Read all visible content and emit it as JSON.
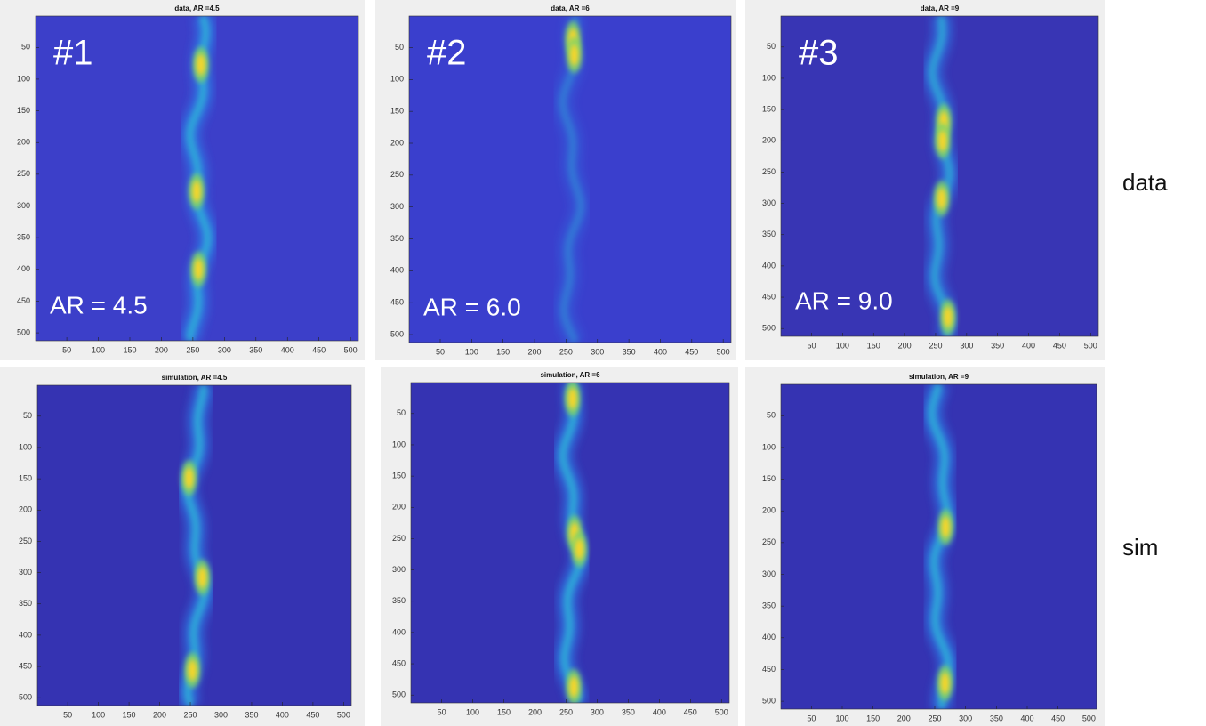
{
  "chart_data": [
    {
      "type": "heatmap",
      "title": "data, AR =4.5",
      "annotations": [
        "#1",
        "AR = 4.5"
      ],
      "xlim": [
        0.5,
        512.5
      ],
      "ylim": [
        0.5,
        512.5
      ],
      "y_reversed": true,
      "xticks": [
        50,
        100,
        150,
        200,
        250,
        300,
        350,
        400,
        450,
        500
      ],
      "yticks": [
        50,
        100,
        150,
        200,
        250,
        300,
        350,
        400,
        450,
        500
      ]
    },
    {
      "type": "heatmap",
      "title": "data, AR =6",
      "annotations": [
        "#2",
        "AR = 6.0"
      ],
      "xlim": [
        0.5,
        512.5
      ],
      "ylim": [
        0.5,
        512.5
      ],
      "y_reversed": true,
      "xticks": [
        50,
        100,
        150,
        200,
        250,
        300,
        350,
        400,
        450,
        500
      ],
      "yticks": [
        50,
        100,
        150,
        200,
        250,
        300,
        350,
        400,
        450,
        500
      ]
    },
    {
      "type": "heatmap",
      "title": "data, AR =9",
      "annotations": [
        "#3",
        "AR = 9.0"
      ],
      "xlim": [
        0.5,
        512.5
      ],
      "ylim": [
        0.5,
        512.5
      ],
      "y_reversed": true,
      "xticks": [
        50,
        100,
        150,
        200,
        250,
        300,
        350,
        400,
        450,
        500
      ],
      "yticks": [
        50,
        100,
        150,
        200,
        250,
        300,
        350,
        400,
        450,
        500
      ]
    },
    {
      "type": "heatmap",
      "title": "simulation, AR =4.5",
      "xlim": [
        0.5,
        512.5
      ],
      "ylim": [
        0.5,
        512.5
      ],
      "y_reversed": true,
      "xticks": [
        50,
        100,
        150,
        200,
        250,
        300,
        350,
        400,
        450,
        500
      ],
      "yticks": [
        50,
        100,
        150,
        200,
        250,
        300,
        350,
        400,
        450,
        500
      ]
    },
    {
      "type": "heatmap",
      "title": "simulation, AR =6",
      "xlim": [
        0.5,
        512.5
      ],
      "ylim": [
        0.5,
        512.5
      ],
      "y_reversed": true,
      "xticks": [
        50,
        100,
        150,
        200,
        250,
        300,
        350,
        400,
        450,
        500
      ],
      "yticks": [
        50,
        100,
        150,
        200,
        250,
        300,
        350,
        400,
        450,
        500
      ]
    },
    {
      "type": "heatmap",
      "title": "simulation, AR =9",
      "xlim": [
        0.5,
        512.5
      ],
      "ylim": [
        0.5,
        512.5
      ],
      "y_reversed": true,
      "xticks": [
        50,
        100,
        150,
        200,
        250,
        300,
        350,
        400,
        450,
        500
      ],
      "yticks": [
        50,
        100,
        150,
        200,
        250,
        300,
        350,
        400,
        450,
        500
      ]
    }
  ],
  "row_labels": [
    "data",
    "sim"
  ]
}
